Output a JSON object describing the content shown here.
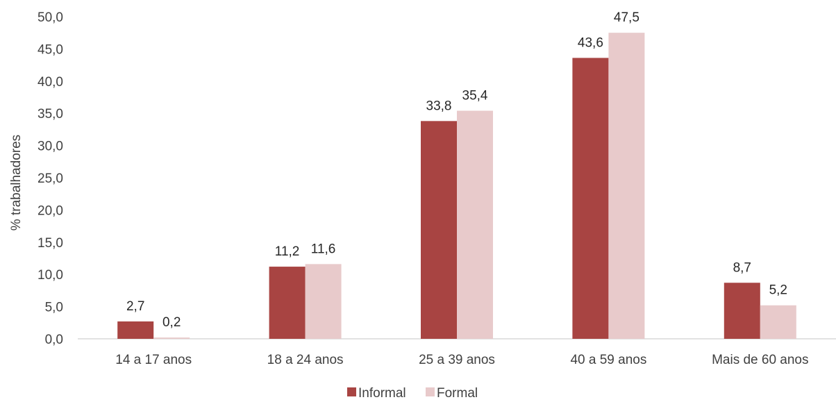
{
  "chart_data": {
    "type": "bar",
    "title": "",
    "xlabel": "",
    "ylabel": "% trabalhadores",
    "ylim": [
      0,
      50
    ],
    "y_tick_step": 5,
    "y_tick_labels": [
      "0,0",
      "5,0",
      "10,0",
      "15,0",
      "20,0",
      "25,0",
      "30,0",
      "35,0",
      "40,0",
      "45,0",
      "50,0"
    ],
    "grid": false,
    "legend_position": "bottom",
    "categories": [
      "14 a 17 anos",
      "18 a 24 anos",
      "25 a 39 anos",
      "40 a 59 anos",
      "Mais de 60 anos"
    ],
    "series": [
      {
        "name": "Informal",
        "color": "#a84442",
        "values": [
          2.7,
          11.2,
          33.8,
          43.6,
          8.7
        ],
        "labels": [
          "2,7",
          "11,2",
          "33,8",
          "43,6",
          "8,7"
        ]
      },
      {
        "name": "Formal",
        "color": "#e8cacb",
        "values": [
          0.2,
          11.6,
          35.4,
          47.5,
          5.2
        ],
        "labels": [
          "0,2",
          "11,6",
          "35,4",
          "47,5",
          "5,2"
        ]
      }
    ]
  }
}
